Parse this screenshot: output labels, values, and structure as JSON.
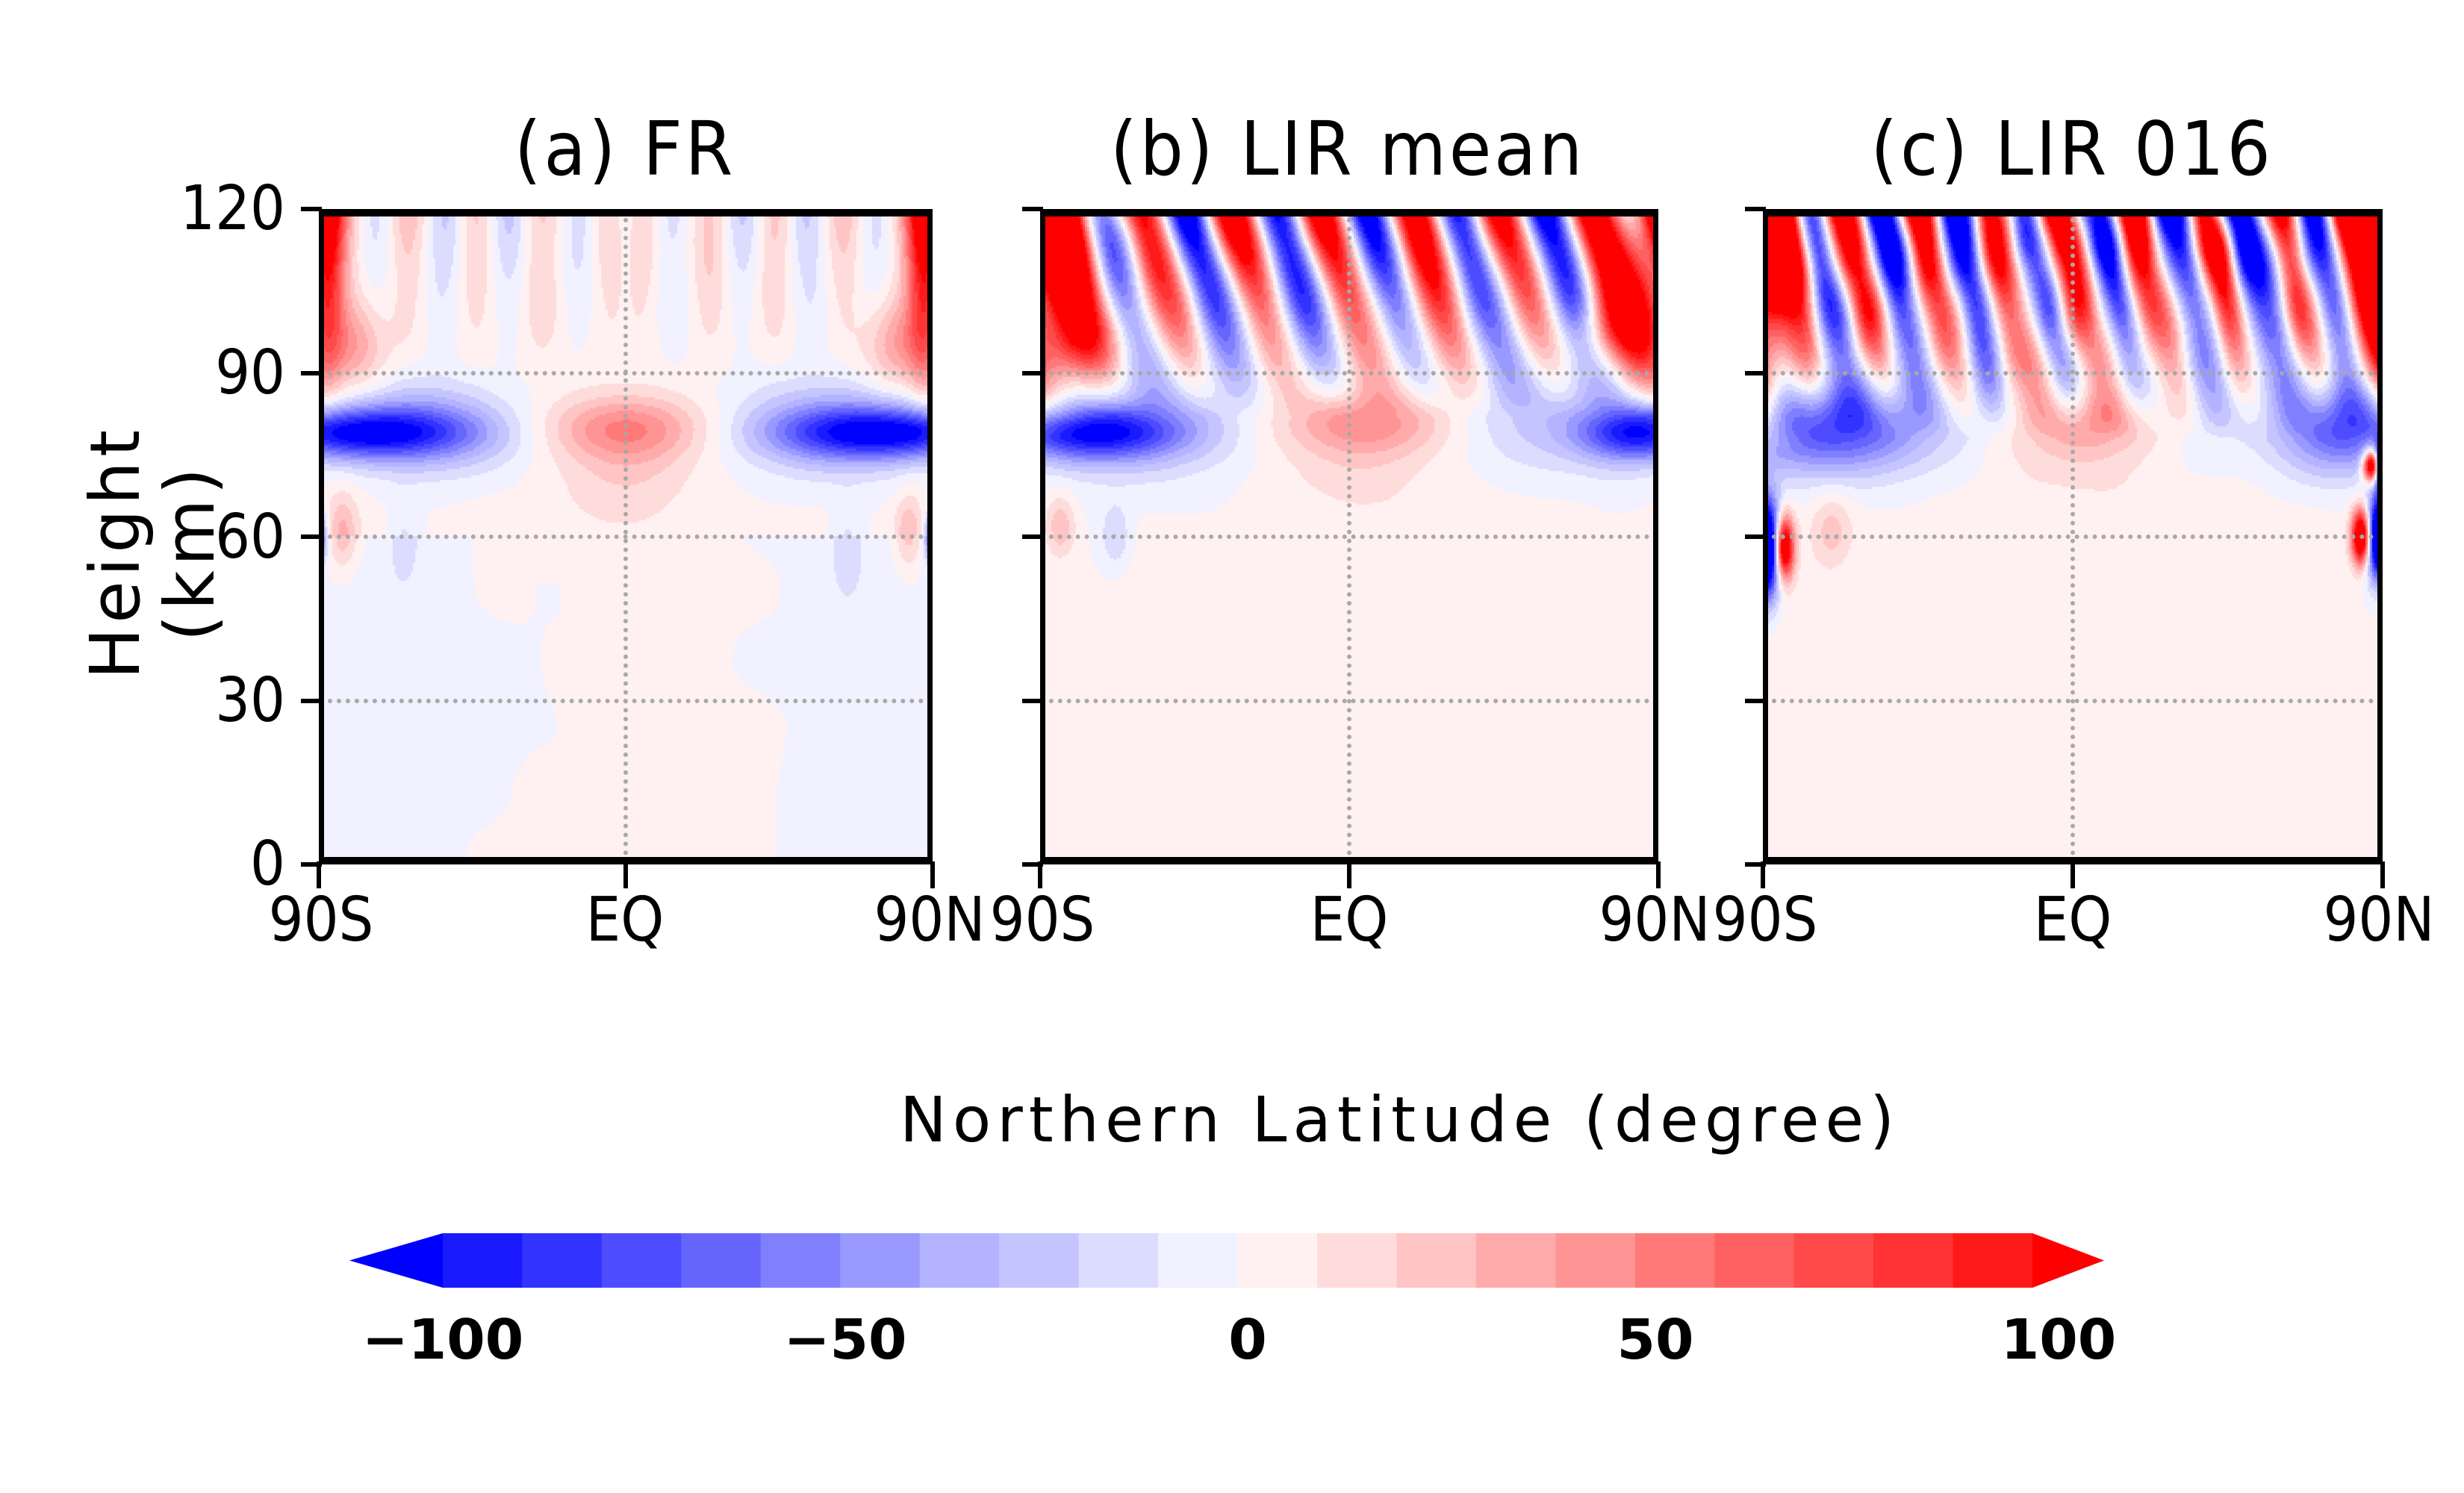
{
  "figure": {
    "panels": [
      {
        "id": "a",
        "title": "(a) FR"
      },
      {
        "id": "b",
        "title": "(b) LIR mean"
      },
      {
        "id": "c",
        "title": "(c) LIR 016"
      }
    ],
    "yaxis": {
      "label": "Height (km)",
      "ticks": [
        "120",
        "90",
        "60",
        "30",
        "0"
      ]
    },
    "xaxis": {
      "label": "Northern Latitude (degree)",
      "ticks": [
        "90S",
        "EQ",
        "90N"
      ]
    },
    "colorbar": {
      "tick_labels": [
        "−100",
        "−50",
        "0",
        "50",
        "100"
      ],
      "extend": "both"
    }
  },
  "chart_data": {
    "type": "heatmap",
    "title": [
      "(a) FR",
      "(b) LIR mean",
      "(c) LIR 016"
    ],
    "xlabel": "Northern Latitude (degree)",
    "ylabel": "Height (km)",
    "xlim": [
      -90,
      90
    ],
    "ylim": [
      0,
      120
    ],
    "xticks": [
      -90,
      0,
      90
    ],
    "xtick_labels": [
      "90S",
      "EQ",
      "90N"
    ],
    "yticks": [
      0,
      30,
      60,
      90,
      120
    ],
    "grid": {
      "x": [
        0
      ],
      "y": [
        30,
        60,
        90
      ],
      "style": "dotted"
    },
    "color_levels": [
      -100,
      -90,
      -80,
      -70,
      -60,
      -50,
      -40,
      -30,
      -20,
      -10,
      0,
      10,
      20,
      30,
      40,
      50,
      60,
      70,
      80,
      90,
      100
    ],
    "colors": [
      "#0000ff",
      "#1a1aff",
      "#3333ff",
      "#4d4dff",
      "#6666ff",
      "#8080ff",
      "#9999ff",
      "#b3b3ff",
      "#c4c4ff",
      "#dcdcff",
      "#f1f1ff",
      "#fff1f1",
      "#ffdcdc",
      "#ffc4c4",
      "#ffabab",
      "#ff9494",
      "#ff7979",
      "#ff6161",
      "#ff4a4a",
      "#ff3333",
      "#ff1a1a",
      "#ff0000"
    ],
    "colorbar_ticks": [
      -100,
      -50,
      0,
      50,
      100
    ],
    "features": [
      {
        "panel": "a",
        "description": "strong red at poles above 90 km; negative band near 80 km at mid/high latitudes; positive lobe near 80 km at equator"
      },
      {
        "panel": "b",
        "description": "alternating strong red/blue columns above 90 km; negative band near 80 km; positive near 80 km at equator"
      },
      {
        "panel": "c",
        "description": "noisier alternating columns above 90 km; strong polar dipoles near 55-75 km"
      }
    ]
  }
}
